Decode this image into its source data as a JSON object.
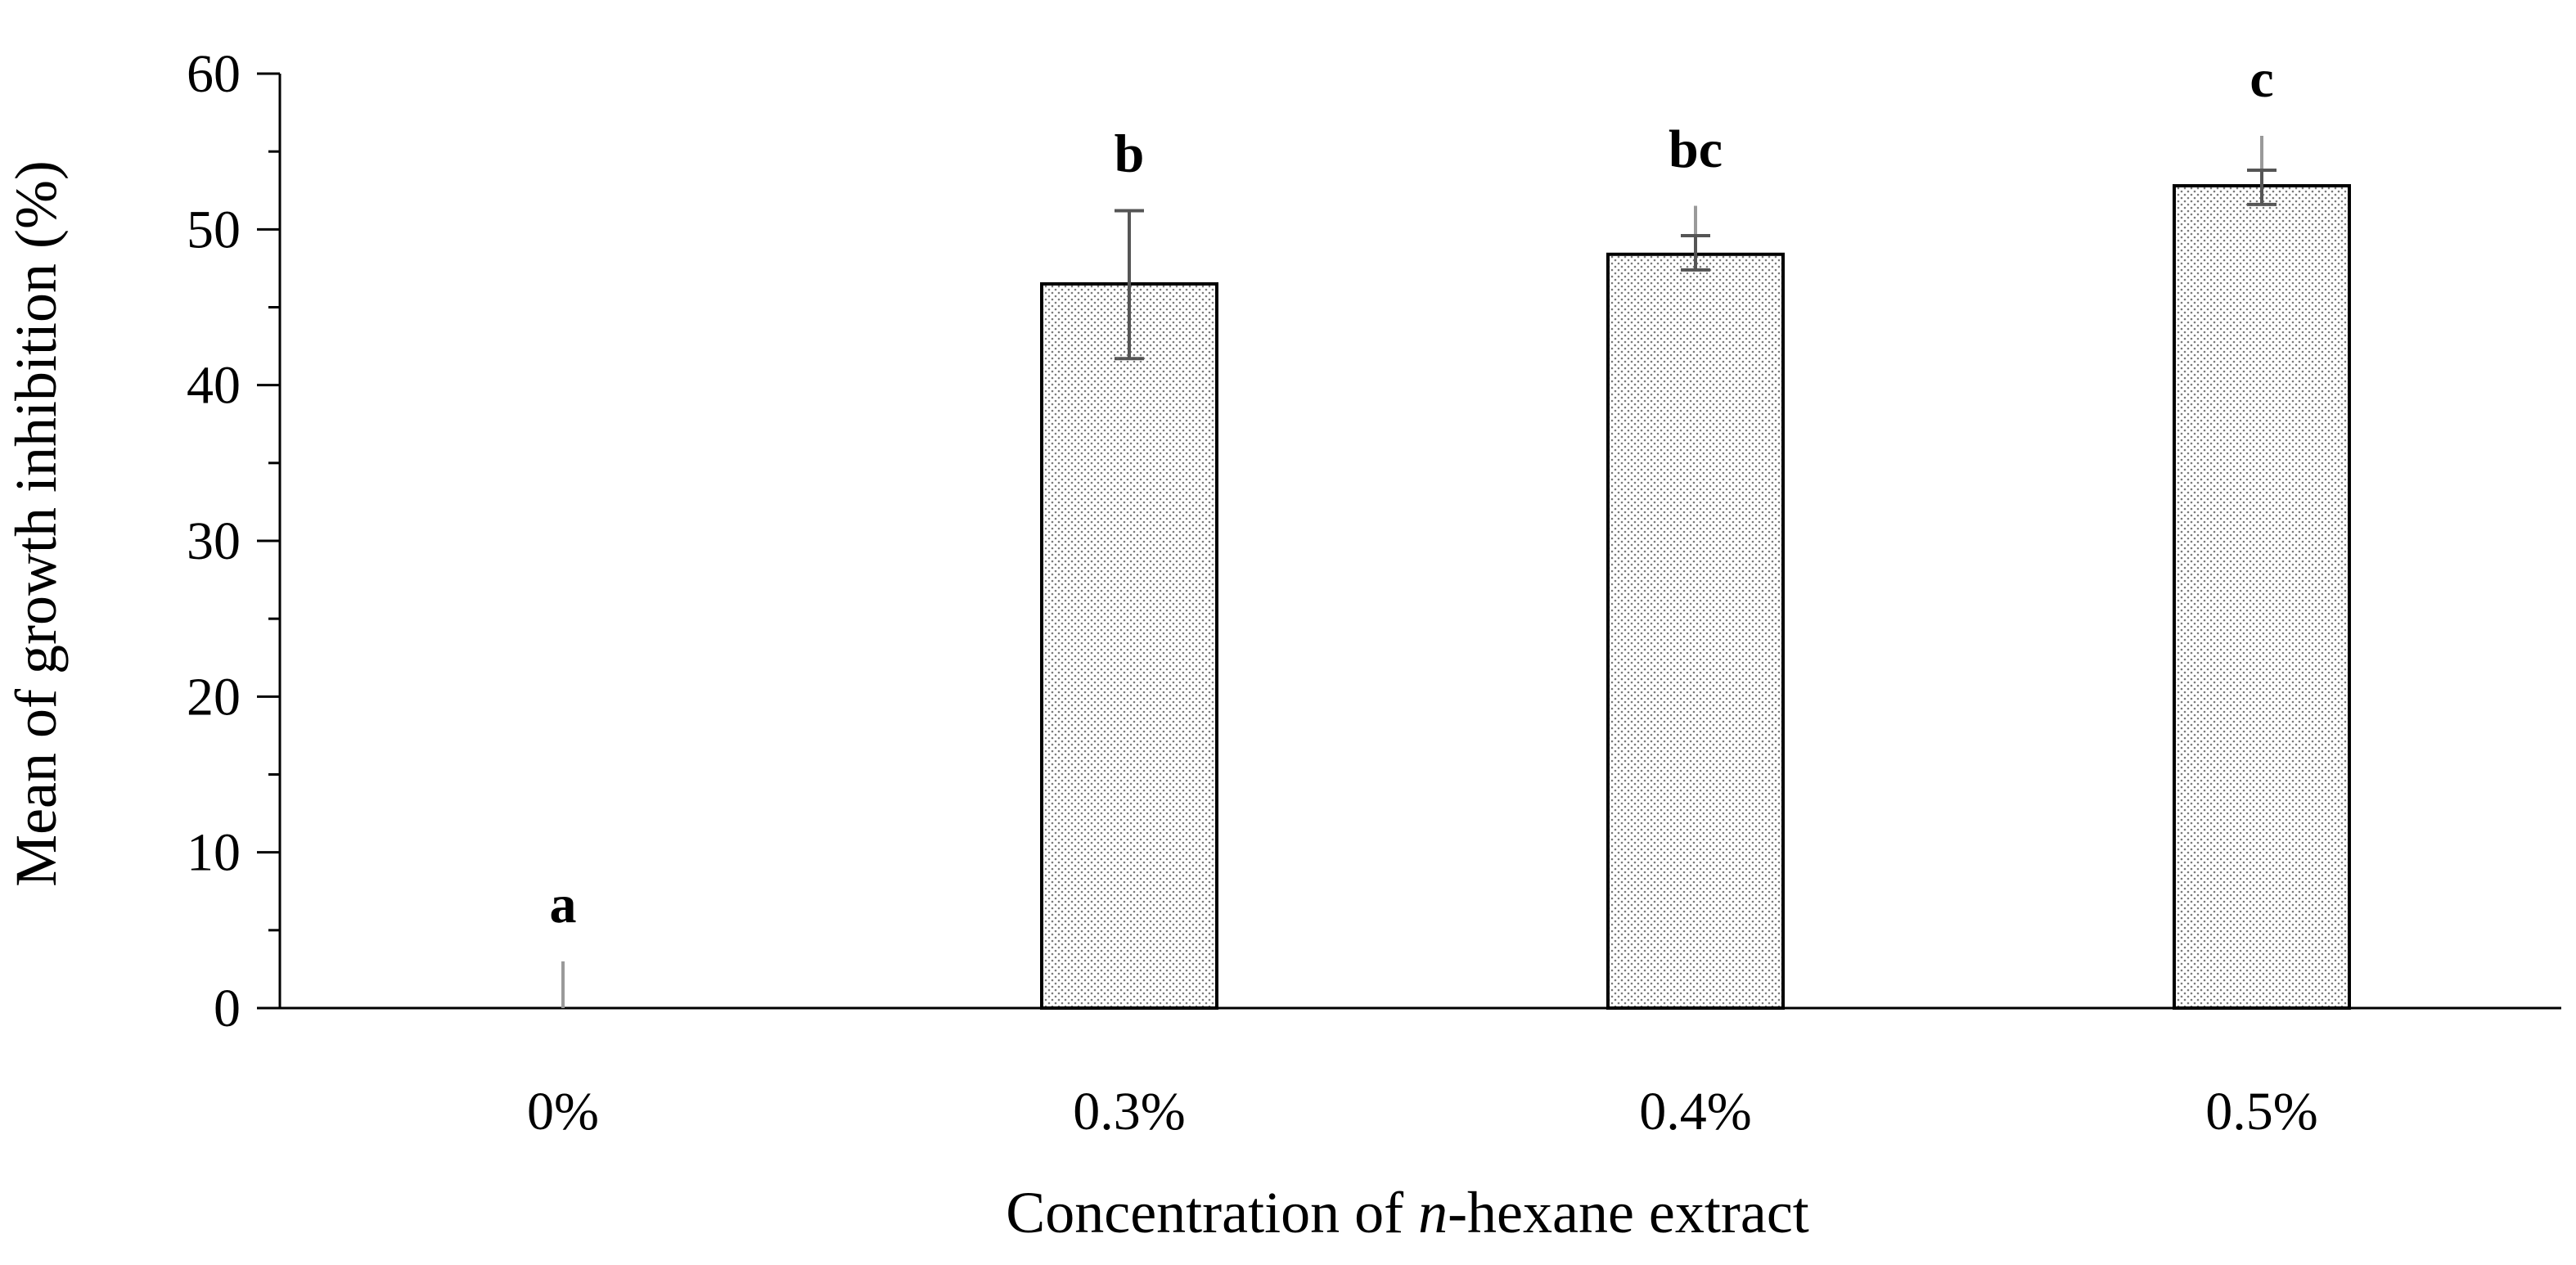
{
  "chart_data": {
    "type": "bar",
    "title": "",
    "categories": [
      "0%",
      "0.3%",
      "0.4%",
      "0.5%"
    ],
    "series": [
      {
        "values": [
          0,
          46.5,
          48.4,
          52.8
        ],
        "error_plus": [
          3,
          4.7,
          3.1,
          3.2
        ],
        "error_minus": [
          0,
          4.8,
          1.0,
          1.2
        ],
        "error_inner_plus": [
          0,
          0,
          1.2,
          1.0
        ],
        "significance_labels": [
          "a",
          "b",
          "bc",
          "c"
        ]
      }
    ],
    "xlabel_parts": [
      "Concentration of ",
      "n",
      "-hexane extract"
    ],
    "ylabel": "Mean of growth inhibition  (%)",
    "ylim": [
      0,
      60
    ],
    "yticks": [
      0,
      10,
      20,
      30,
      40,
      50,
      60
    ],
    "ytick_labels": [
      "0",
      "10",
      "20",
      "30",
      "40",
      "50",
      "60"
    ],
    "grid": false,
    "legend": "none",
    "bar_fill": "stippled grey",
    "bar_stroke": "#000000",
    "error_bar_color": "#555555",
    "error_bar_color_light": "#9a9a9a"
  }
}
